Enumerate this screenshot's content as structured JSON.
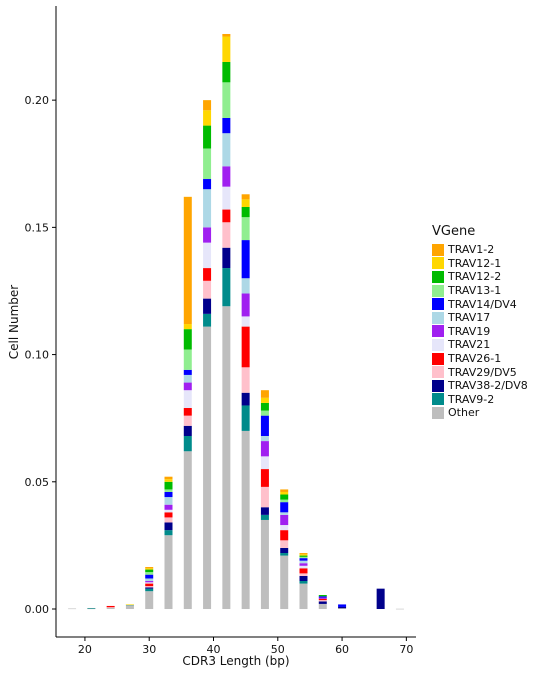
{
  "chart_data": {
    "type": "bar",
    "stacked": true,
    "title": "",
    "xlabel": "CDR3 Length (bp)",
    "ylabel": "Cell Number",
    "xlim": [
      15.5,
      71.5
    ],
    "ylim": [
      -0.011,
      0.237
    ],
    "xticks": [
      20,
      30,
      40,
      50,
      60,
      70
    ],
    "yticks": [
      0.0,
      0.05,
      0.1,
      0.15,
      0.2
    ],
    "ytick_labels": [
      "0.00",
      "0.05",
      "0.10",
      "0.15",
      "0.20"
    ],
    "grid": false,
    "legend_title": "VGene",
    "legend_position": "right",
    "x": [
      18,
      21,
      24,
      27,
      30,
      33,
      36,
      39,
      42,
      45,
      48,
      51,
      54,
      57,
      60,
      63,
      66,
      69
    ],
    "series": [
      {
        "name": "Other",
        "color": "#bebebe",
        "values": [
          0.0002,
          0.0002,
          0.0005,
          0.0015,
          0.007,
          0.029,
          0.062,
          0.111,
          0.119,
          0.07,
          0.035,
          0.021,
          0.01,
          0.002,
          0.0003,
          0.0,
          0.0,
          0.0001
        ]
      },
      {
        "name": "TRAV9-2",
        "color": "#008b8b",
        "values": [
          0.0,
          0.0002,
          0.0,
          0.0002,
          0.001,
          0.002,
          0.006,
          0.005,
          0.015,
          0.01,
          0.002,
          0.001,
          0.001,
          0.0,
          0.0,
          0.0,
          0.0,
          0.0
        ]
      },
      {
        "name": "TRAV38-2/DV8",
        "color": "#00008b",
        "values": [
          0.0,
          0.0,
          0.0,
          0.0,
          0.0005,
          0.003,
          0.004,
          0.006,
          0.008,
          0.005,
          0.003,
          0.002,
          0.002,
          0.001,
          0.0005,
          0.0,
          0.008,
          0.0
        ]
      },
      {
        "name": "TRAV29/DV5",
        "color": "#ffc0cb",
        "values": [
          0.0,
          0.0,
          0.0002,
          0.0,
          0.0005,
          0.002,
          0.004,
          0.007,
          0.01,
          0.01,
          0.008,
          0.003,
          0.001,
          0.0005,
          0.0,
          0.0,
          0.0,
          0.0
        ]
      },
      {
        "name": "TRAV26-1",
        "color": "#ff0000",
        "values": [
          0.0,
          0.0,
          0.0005,
          0.0,
          0.001,
          0.002,
          0.003,
          0.005,
          0.005,
          0.016,
          0.007,
          0.004,
          0.002,
          0.0005,
          0.0,
          0.0,
          0.0,
          0.0
        ]
      },
      {
        "name": "TRAV21",
        "color": "#e6e6fa",
        "values": [
          0.0,
          0.0,
          0.0,
          0.0,
          0.0005,
          0.001,
          0.007,
          0.01,
          0.009,
          0.004,
          0.005,
          0.002,
          0.001,
          0.0,
          0.0,
          0.0,
          0.0,
          0.0
        ]
      },
      {
        "name": "TRAV19",
        "color": "#a020f0",
        "values": [
          0.0,
          0.0,
          0.0,
          0.0,
          0.0005,
          0.002,
          0.003,
          0.006,
          0.008,
          0.009,
          0.006,
          0.004,
          0.001,
          0.0005,
          0.0,
          0.0,
          0.0,
          0.0
        ]
      },
      {
        "name": "TRAV17",
        "color": "#add8e6",
        "values": [
          0.0,
          0.0,
          0.0,
          0.0,
          0.001,
          0.003,
          0.003,
          0.015,
          0.013,
          0.006,
          0.002,
          0.001,
          0.001,
          0.0,
          0.0,
          0.0,
          0.0,
          0.0
        ]
      },
      {
        "name": "TRAV14/DV4",
        "color": "#0000ff",
        "values": [
          0.0,
          0.0,
          0.0,
          0.0,
          0.0015,
          0.002,
          0.002,
          0.004,
          0.006,
          0.015,
          0.008,
          0.004,
          0.001,
          0.0005,
          0.001,
          0.0,
          0.0,
          0.0
        ]
      },
      {
        "name": "TRAV13-1",
        "color": "#90ee90",
        "values": [
          0.0,
          0.0,
          0.0,
          0.0,
          0.001,
          0.001,
          0.008,
          0.012,
          0.014,
          0.009,
          0.002,
          0.001,
          0.0005,
          0.0,
          0.0,
          0.0,
          0.0,
          0.0
        ]
      },
      {
        "name": "TRAV12-2",
        "color": "#00bb00",
        "values": [
          0.0,
          0.0,
          0.0,
          0.0,
          0.001,
          0.003,
          0.008,
          0.009,
          0.008,
          0.004,
          0.003,
          0.002,
          0.0005,
          0.0005,
          0.0,
          0.0,
          0.0,
          0.0
        ]
      },
      {
        "name": "TRAV12-1",
        "color": "#ffd700",
        "values": [
          0.0,
          0.0,
          0.0,
          0.0001,
          0.0005,
          0.001,
          0.002,
          0.006,
          0.01,
          0.003,
          0.002,
          0.001,
          0.0005,
          0.0,
          0.0,
          0.0,
          0.0,
          0.0
        ]
      },
      {
        "name": "TRAV1-2",
        "color": "#ffa500",
        "values": [
          0.0,
          0.0,
          0.0,
          0.0,
          0.0005,
          0.001,
          0.05,
          0.004,
          0.001,
          0.002,
          0.003,
          0.001,
          0.0005,
          0.0,
          0.0,
          0.0,
          0.0,
          0.0
        ]
      }
    ],
    "legend_order": [
      "TRAV1-2",
      "TRAV12-1",
      "TRAV12-2",
      "TRAV13-1",
      "TRAV14/DV4",
      "TRAV17",
      "TRAV19",
      "TRAV21",
      "TRAV26-1",
      "TRAV29/DV5",
      "TRAV38-2/DV8",
      "TRAV9-2",
      "Other"
    ]
  }
}
